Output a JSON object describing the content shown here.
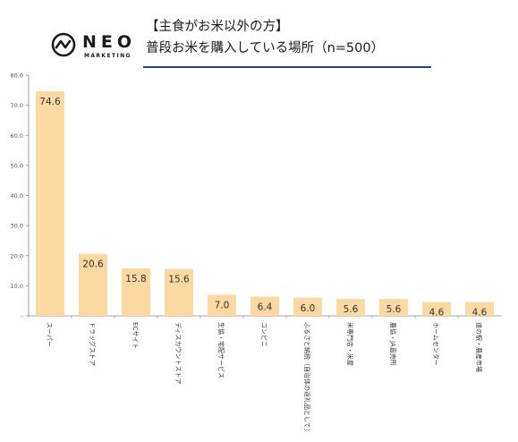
{
  "brand": {
    "name": "NEO",
    "sub": "MARKETING",
    "icon": "neo-logo-icon"
  },
  "title": {
    "line1": "【主食がお米以外の方】",
    "line2": "普段お米を購入している場所（n=500）"
  },
  "colors": {
    "bar": "#fcd9a3",
    "axis": "#888888",
    "text": "#333333",
    "rule": "#2c3e8f"
  },
  "chart_data": {
    "type": "bar",
    "categories": [
      "スーパー",
      "ドラッグストア",
      "ECサイト",
      "ディスカウントストア",
      "生協・宅配サービス",
      "コンビニ",
      "ふるさと納税（自治体の返礼品として）",
      "米専門店・米屋",
      "農協・JA直売所",
      "ホームセンター",
      "道の駅・農産市場"
    ],
    "values": [
      74.6,
      20.6,
      15.8,
      15.6,
      7.0,
      6.4,
      6.0,
      5.6,
      5.6,
      4.6,
      4.6
    ],
    "value_labels": [
      "74.6",
      "20.6",
      "15.8",
      "15.6",
      "7.0",
      "6.4",
      "6.0",
      "5.6",
      "5.6",
      "4.6",
      "4.6"
    ],
    "ylim": [
      0,
      80
    ],
    "yticks": [
      {
        "value": 0,
        "label": "-"
      },
      {
        "value": 10,
        "label": "10.0"
      },
      {
        "value": 20,
        "label": "20.0"
      },
      {
        "value": 30,
        "label": "30.0"
      },
      {
        "value": 40,
        "label": "40.0"
      },
      {
        "value": 50,
        "label": "50.0"
      },
      {
        "value": 60,
        "label": "60.0"
      },
      {
        "value": 70,
        "label": "70.0"
      },
      {
        "value": 80,
        "label": "80.0"
      }
    ],
    "grid": false,
    "legend": "none"
  }
}
